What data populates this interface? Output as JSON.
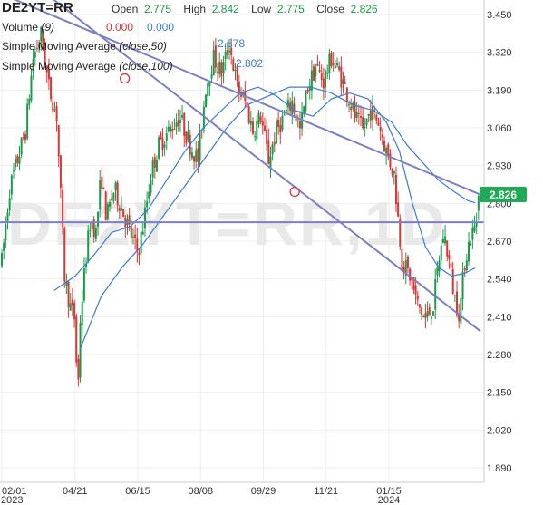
{
  "header": {
    "symbol": "DE2YT=RR",
    "open_label": "Open",
    "open_value": "2.775",
    "high_label": "High",
    "high_value": "2.842",
    "low_label": "Low",
    "low_value": "2.775",
    "close_label": "Close",
    "close_value": "2.826",
    "volume_label": "Volume",
    "volume_param": "(9)",
    "volume_val1": "0.000",
    "volume_val2": "0.000",
    "sma50_label": "Simple Moving Average",
    "sma50_param": "(close,50)",
    "sma50_value": "2.578",
    "sma100_label": "Simple Moving Average",
    "sma100_param": "(close,100)",
    "sma100_value": "2.802"
  },
  "watermark": "DE2YT=RR,1D",
  "last_price_badge": "2.826",
  "colors": {
    "up": "#1a9a4a",
    "down": "#d93636",
    "sma": "#3b7bd8",
    "trendline": "#7b7fc4",
    "badge": "#1faa55"
  },
  "chart_data": {
    "type": "candlestick",
    "title": "DE2YT=RR",
    "ylim": [
      1.84,
      3.5
    ],
    "y_ticks": [
      "3.450",
      "3.320",
      "3.190",
      "3.060",
      "2.930",
      "2.800",
      "2.670",
      "2.540",
      "2.410",
      "2.280",
      "2.150",
      "2.020",
      "1.890"
    ],
    "x_ticks": [
      "02/01",
      "04/21",
      "06/15",
      "08/08",
      "09/29",
      "11/21",
      "01/15"
    ],
    "x_years": [
      "2023",
      "2024"
    ],
    "x_tick_index": [
      0,
      56,
      104,
      152,
      200,
      248,
      296
    ],
    "close_path": [
      [
        0,
        2.6
      ],
      [
        6,
        2.85
      ],
      [
        12,
        2.95
      ],
      [
        18,
        3.05
      ],
      [
        24,
        3.3
      ],
      [
        30,
        3.38
      ],
      [
        36,
        3.2
      ],
      [
        42,
        3.1
      ],
      [
        48,
        2.55
      ],
      [
        52,
        2.45
      ],
      [
        56,
        2.4
      ],
      [
        58,
        2.12
      ],
      [
        60,
        2.4
      ],
      [
        64,
        2.6
      ],
      [
        68,
        2.75
      ],
      [
        72,
        2.7
      ],
      [
        76,
        2.9
      ],
      [
        80,
        2.75
      ],
      [
        86,
        2.85
      ],
      [
        92,
        2.78
      ],
      [
        98,
        2.7
      ],
      [
        104,
        2.63
      ],
      [
        108,
        2.72
      ],
      [
        114,
        2.9
      ],
      [
        120,
        3.0
      ],
      [
        128,
        3.05
      ],
      [
        136,
        3.1
      ],
      [
        144,
        3.0
      ],
      [
        150,
        2.95
      ],
      [
        156,
        3.2
      ],
      [
        162,
        3.3
      ],
      [
        168,
        3.25
      ],
      [
        174,
        3.35
      ],
      [
        180,
        3.2
      ],
      [
        186,
        3.15
      ],
      [
        192,
        3.05
      ],
      [
        198,
        3.1
      ],
      [
        204,
        2.95
      ],
      [
        210,
        3.05
      ],
      [
        216,
        3.1
      ],
      [
        222,
        3.15
      ],
      [
        228,
        3.05
      ],
      [
        234,
        3.2
      ],
      [
        240,
        3.27
      ],
      [
        246,
        3.22
      ],
      [
        252,
        3.3
      ],
      [
        258,
        3.25
      ],
      [
        264,
        3.18
      ],
      [
        270,
        3.1
      ],
      [
        276,
        3.05
      ],
      [
        282,
        3.12
      ],
      [
        288,
        3.08
      ],
      [
        294,
        2.98
      ],
      [
        300,
        2.9
      ],
      [
        306,
        2.6
      ],
      [
        312,
        2.55
      ],
      [
        318,
        2.45
      ],
      [
        324,
        2.4
      ],
      [
        330,
        2.45
      ],
      [
        334,
        2.6
      ],
      [
        338,
        2.7
      ],
      [
        342,
        2.6
      ],
      [
        346,
        2.48
      ],
      [
        350,
        2.42
      ],
      [
        354,
        2.6
      ],
      [
        358,
        2.68
      ],
      [
        362,
        2.72
      ],
      [
        366,
        2.826
      ]
    ],
    "ohlc_last": {
      "open": 2.775,
      "high": 2.842,
      "low": 2.775,
      "close": 2.826
    },
    "sma_50_path": [
      [
        40,
        2.5
      ],
      [
        56,
        2.55
      ],
      [
        70,
        2.62
      ],
      [
        84,
        2.7
      ],
      [
        98,
        2.72
      ],
      [
        112,
        2.78
      ],
      [
        126,
        2.88
      ],
      [
        140,
        2.98
      ],
      [
        154,
        3.06
      ],
      [
        168,
        3.12
      ],
      [
        182,
        3.18
      ],
      [
        196,
        3.2
      ],
      [
        210,
        3.17
      ],
      [
        224,
        3.12
      ],
      [
        238,
        3.1
      ],
      [
        252,
        3.16
      ],
      [
        266,
        3.18
      ],
      [
        280,
        3.16
      ],
      [
        294,
        3.08
      ],
      [
        304,
        2.98
      ],
      [
        314,
        2.8
      ],
      [
        324,
        2.65
      ],
      [
        334,
        2.58
      ],
      [
        344,
        2.55
      ],
      [
        354,
        2.56
      ],
      [
        362,
        2.578
      ]
    ],
    "sma_100_path": [
      [
        60,
        2.3
      ],
      [
        76,
        2.48
      ],
      [
        92,
        2.58
      ],
      [
        108,
        2.66
      ],
      [
        124,
        2.76
      ],
      [
        140,
        2.86
      ],
      [
        156,
        2.96
      ],
      [
        172,
        3.06
      ],
      [
        188,
        3.14
      ],
      [
        204,
        3.17
      ],
      [
        220,
        3.2
      ],
      [
        236,
        3.2
      ],
      [
        252,
        3.18
      ],
      [
        268,
        3.14
      ],
      [
        284,
        3.12
      ],
      [
        298,
        3.08
      ],
      [
        310,
        3.0
      ],
      [
        322,
        2.94
      ],
      [
        334,
        2.88
      ],
      [
        346,
        2.84
      ],
      [
        356,
        2.81
      ],
      [
        362,
        2.802
      ]
    ],
    "trendlines": [
      {
        "from": [
          0,
          3.52
        ],
        "to": [
          366,
          2.83
        ]
      },
      {
        "from": [
          0,
          3.64
        ],
        "to": [
          366,
          2.36
        ]
      }
    ],
    "horizontal_line": 2.735,
    "trendline_markers": [
      [
        94,
        3.23
      ],
      [
        224,
        2.84
      ]
    ]
  }
}
